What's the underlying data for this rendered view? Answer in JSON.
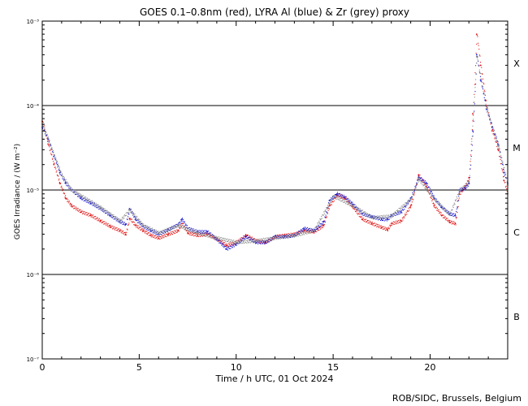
{
  "chart_data": {
    "type": "line",
    "title": "GOES 0.1–0.8nm (red), LYRA Al (blue) & Zr (grey) proxy",
    "xlabel": "Time / h UTC, 01 Oct 2024",
    "ylabel": "GOES Irradiance / (W m⁻²)",
    "xlim": [
      0,
      24
    ],
    "ylim_log10": [
      -7,
      -3
    ],
    "x_ticks": [
      0,
      5,
      10,
      15,
      20
    ],
    "y_ticks": [
      {
        "exp": -3,
        "label": "10⁻³"
      },
      {
        "exp": -4,
        "label": "10⁻⁴"
      },
      {
        "exp": -5,
        "label": "10⁻⁵"
      },
      {
        "exp": -6,
        "label": "10⁻⁶"
      },
      {
        "exp": -7,
        "label": "10⁻⁷"
      }
    ],
    "flare_classes": [
      {
        "label": "X",
        "log10_center": -3.5
      },
      {
        "label": "M",
        "log10_center": -4.5
      },
      {
        "label": "C",
        "log10_center": -5.5
      },
      {
        "label": "B",
        "log10_center": -6.5
      }
    ],
    "class_lines_log10": [
      -4,
      -5,
      -6
    ],
    "series": [
      {
        "name": "GOES 0.1-0.8nm",
        "color": "#e01010",
        "points": [
          [
            0,
            6.5e-05
          ],
          [
            0.3,
            3.5e-05
          ],
          [
            0.6,
            2e-05
          ],
          [
            0.9,
            1.2e-05
          ],
          [
            1.2,
            8e-06
          ],
          [
            1.5,
            6.5e-06
          ],
          [
            2.0,
            5.5e-06
          ],
          [
            2.5,
            5e-06
          ],
          [
            3.0,
            4.3e-06
          ],
          [
            3.5,
            3.7e-06
          ],
          [
            4.0,
            3.3e-06
          ],
          [
            4.3,
            3e-06
          ],
          [
            4.5,
            4.6e-06
          ],
          [
            4.8,
            3.8e-06
          ],
          [
            5.2,
            3.3e-06
          ],
          [
            5.6,
            2.9e-06
          ],
          [
            6.0,
            2.7e-06
          ],
          [
            6.5,
            3e-06
          ],
          [
            7.0,
            3.3e-06
          ],
          [
            7.2,
            4e-06
          ],
          [
            7.5,
            3.1e-06
          ],
          [
            8.0,
            2.9e-06
          ],
          [
            8.5,
            3e-06
          ],
          [
            9.0,
            2.6e-06
          ],
          [
            9.5,
            2.2e-06
          ],
          [
            10.0,
            2.4e-06
          ],
          [
            10.5,
            2.9e-06
          ],
          [
            11.0,
            2.5e-06
          ],
          [
            11.5,
            2.4e-06
          ],
          [
            12.0,
            2.8e-06
          ],
          [
            12.5,
            2.9e-06
          ],
          [
            13.0,
            3e-06
          ],
          [
            13.5,
            3.3e-06
          ],
          [
            14.0,
            3.2e-06
          ],
          [
            14.5,
            3.8e-06
          ],
          [
            14.8,
            6.5e-06
          ],
          [
            15.2,
            8.8e-06
          ],
          [
            15.6,
            8e-06
          ],
          [
            16.0,
            6.3e-06
          ],
          [
            16.5,
            4.5e-06
          ],
          [
            17.0,
            4e-06
          ],
          [
            17.5,
            3.6e-06
          ],
          [
            17.8,
            3.4e-06
          ],
          [
            18.0,
            4e-06
          ],
          [
            18.5,
            4.3e-06
          ],
          [
            19.0,
            6.5e-06
          ],
          [
            19.4,
            1.5e-05
          ],
          [
            19.8,
            1.1e-05
          ],
          [
            20.2,
            6.5e-06
          ],
          [
            20.6,
            5e-06
          ],
          [
            21.0,
            4.2e-06
          ],
          [
            21.3,
            4e-06
          ],
          [
            21.5,
            9e-06
          ],
          [
            21.8,
            1.1e-05
          ],
          [
            22.0,
            1.4e-05
          ],
          [
            22.2,
            8e-05
          ],
          [
            22.4,
            0.0007
          ],
          [
            22.6,
            0.0003
          ],
          [
            22.9,
            0.0001
          ],
          [
            23.2,
            5e-05
          ],
          [
            23.5,
            3e-05
          ],
          [
            23.8,
            1.3e-05
          ],
          [
            24.0,
            9e-06
          ]
        ]
      },
      {
        "name": "LYRA Al proxy",
        "color": "#1515d0",
        "points": [
          [
            0,
            5.5e-05
          ],
          [
            0.3,
            4e-05
          ],
          [
            0.6,
            2.5e-05
          ],
          [
            0.9,
            1.6e-05
          ],
          [
            1.2,
            1.2e-05
          ],
          [
            1.5,
            1e-05
          ],
          [
            2.0,
            8e-06
          ],
          [
            2.5,
            7e-06
          ],
          [
            3.0,
            6e-06
          ],
          [
            3.5,
            5e-06
          ],
          [
            4.0,
            4.2e-06
          ],
          [
            4.3,
            3.9e-06
          ],
          [
            4.5,
            6e-06
          ],
          [
            4.8,
            4.5e-06
          ],
          [
            5.2,
            3.7e-06
          ],
          [
            5.6,
            3.3e-06
          ],
          [
            6.0,
            3e-06
          ],
          [
            6.5,
            3.4e-06
          ],
          [
            7.0,
            3.9e-06
          ],
          [
            7.2,
            4.5e-06
          ],
          [
            7.5,
            3.5e-06
          ],
          [
            8.0,
            3.2e-06
          ],
          [
            8.5,
            3.2e-06
          ],
          [
            9.0,
            2.6e-06
          ],
          [
            9.5,
            2e-06
          ],
          [
            10.0,
            2.3e-06
          ],
          [
            10.5,
            2.8e-06
          ],
          [
            11.0,
            2.4e-06
          ],
          [
            11.5,
            2.4e-06
          ],
          [
            12.0,
            2.8e-06
          ],
          [
            12.5,
            2.8e-06
          ],
          [
            13.0,
            2.9e-06
          ],
          [
            13.5,
            3.5e-06
          ],
          [
            14.0,
            3.3e-06
          ],
          [
            14.5,
            4.2e-06
          ],
          [
            14.8,
            7.5e-06
          ],
          [
            15.2,
            9e-06
          ],
          [
            15.6,
            8.2e-06
          ],
          [
            16.0,
            6.8e-06
          ],
          [
            16.5,
            5.2e-06
          ],
          [
            17.0,
            4.8e-06
          ],
          [
            17.5,
            4.5e-06
          ],
          [
            17.8,
            4.5e-06
          ],
          [
            18.0,
            5e-06
          ],
          [
            18.5,
            5.5e-06
          ],
          [
            19.0,
            8e-06
          ],
          [
            19.4,
            1.4e-05
          ],
          [
            19.8,
            1.2e-05
          ],
          [
            20.2,
            8e-06
          ],
          [
            20.6,
            6.2e-06
          ],
          [
            21.0,
            5.2e-06
          ],
          [
            21.3,
            5e-06
          ],
          [
            21.5,
            1e-05
          ],
          [
            21.8,
            1.05e-05
          ],
          [
            22.0,
            1.2e-05
          ],
          [
            22.2,
            5e-05
          ],
          [
            22.4,
            0.0004
          ],
          [
            22.6,
            0.0002
          ],
          [
            22.9,
            9e-05
          ],
          [
            23.2,
            5.5e-05
          ],
          [
            23.5,
            3.5e-05
          ],
          [
            23.8,
            1.6e-05
          ],
          [
            24.0,
            1.2e-05
          ]
        ]
      },
      {
        "name": "LYRA Zr proxy",
        "color": "#888888",
        "points": [
          [
            0,
            6e-05
          ],
          [
            0.5,
            3e-05
          ],
          [
            1.0,
            1.5e-05
          ],
          [
            1.5,
            1e-05
          ],
          [
            2.0,
            8.5e-06
          ],
          [
            3.0,
            6.2e-06
          ],
          [
            4.0,
            4.3e-06
          ],
          [
            4.5,
            5.8e-06
          ],
          [
            5.2,
            3.8e-06
          ],
          [
            6.0,
            3.1e-06
          ],
          [
            7.0,
            3.8e-06
          ],
          [
            8.0,
            3.1e-06
          ],
          [
            9.0,
            2.7e-06
          ],
          [
            10.0,
            2.4e-06
          ],
          [
            11.0,
            2.5e-06
          ],
          [
            12.0,
            2.7e-06
          ],
          [
            13.0,
            2.9e-06
          ],
          [
            14.0,
            3.3e-06
          ],
          [
            15.0,
            8.5e-06
          ],
          [
            16.0,
            6.5e-06
          ],
          [
            17.0,
            4.7e-06
          ],
          [
            18.0,
            4.9e-06
          ],
          [
            19.0,
            7.8e-06
          ],
          [
            19.4,
            1.35e-05
          ],
          [
            20.2,
            7.8e-06
          ],
          [
            21.0,
            5.1e-06
          ],
          [
            21.5,
            9.8e-06
          ],
          [
            22.0,
            1.25e-05
          ],
          [
            22.4,
            0.00038
          ],
          [
            22.9,
            9.2e-05
          ],
          [
            23.5,
            3.4e-05
          ],
          [
            24.0,
            1.15e-05
          ]
        ]
      }
    ]
  },
  "footer": {
    "credit": "ROB/SIDC, Brussels, Belgium"
  }
}
